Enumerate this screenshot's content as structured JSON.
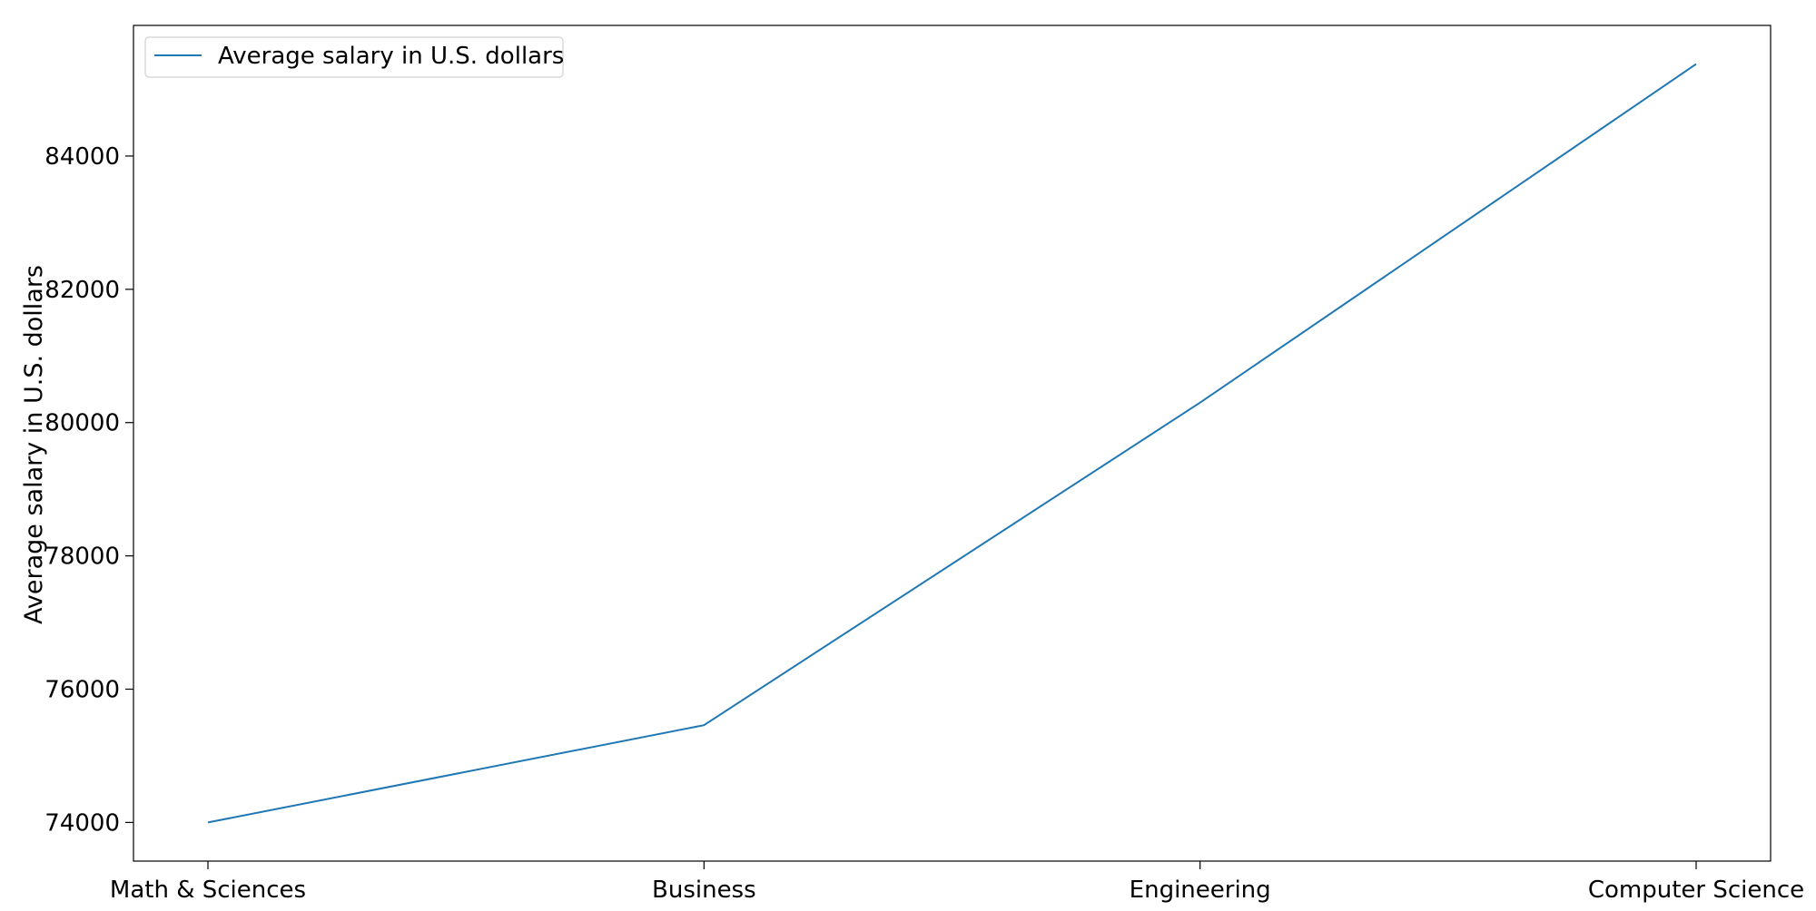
{
  "chart_data": {
    "type": "line",
    "title": "",
    "xlabel": "",
    "ylabel": "Average salary in U.S. dollars",
    "categories": [
      "Math & Sciences",
      "Business",
      "Engineering",
      "Computer Science"
    ],
    "series": [
      {
        "name": "Average salary in U.S. dollars",
        "values": [
          74000,
          75460,
          80300,
          85380
        ],
        "color": "#1f77b4"
      }
    ],
    "ylim": [
      73420,
      85960
    ],
    "yticks": [
      74000,
      76000,
      78000,
      80000,
      82000,
      84000
    ],
    "grid": false,
    "legend_position": "top-left"
  }
}
